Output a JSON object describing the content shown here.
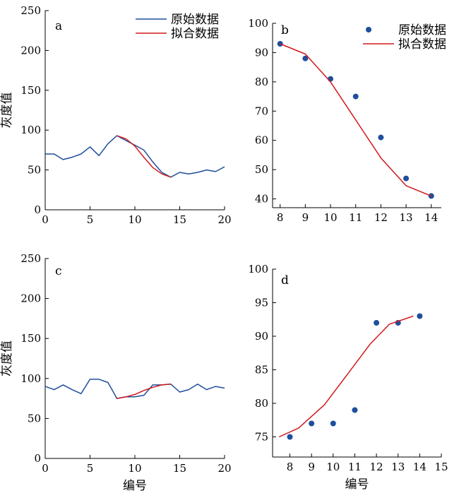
{
  "chart_data": [
    {
      "panel": "a",
      "type": "line",
      "ylabel": "灰度值",
      "xlabel": "",
      "xlim": [
        0,
        20
      ],
      "ylim": [
        0,
        250
      ],
      "xticks": [
        0,
        5,
        10,
        15,
        20
      ],
      "yticks": [
        0,
        50,
        100,
        150,
        200,
        250
      ],
      "legend_position": "top-right",
      "series": [
        {
          "name": "原始数据",
          "kind": "line",
          "color": "#1f4e9c",
          "x": [
            0,
            1,
            2,
            3,
            4,
            5,
            6,
            7,
            8,
            9,
            10,
            11,
            12,
            13,
            14,
            15,
            16,
            17,
            18,
            19,
            20
          ],
          "y": [
            70,
            70,
            63,
            66,
            70,
            79,
            68,
            83,
            93,
            87,
            81,
            75,
            60,
            47,
            41,
            47,
            45,
            47,
            50,
            48,
            54
          ]
        },
        {
          "name": "拟合数据",
          "kind": "line",
          "color": "#d0181c",
          "x": [
            8,
            9,
            10,
            11,
            12,
            13,
            14
          ],
          "y": [
            93,
            89,
            80,
            66,
            53,
            45,
            41
          ]
        }
      ]
    },
    {
      "panel": "b",
      "type": "scatter",
      "xlabel": "",
      "ylabel": "",
      "xlim": [
        7.7,
        14.4
      ],
      "ylim": [
        37,
        100
      ],
      "xticks": [
        8,
        9,
        10,
        11,
        12,
        13,
        14
      ],
      "yticks": [
        40,
        50,
        60,
        70,
        80,
        90,
        100
      ],
      "legend_position": "top-right",
      "series": [
        {
          "name": "原始数据",
          "kind": "scatter",
          "color": "#1f4e9c",
          "x": [
            8,
            9,
            10,
            11,
            12,
            13,
            14
          ],
          "y": [
            93,
            88,
            81,
            75,
            61,
            47,
            41
          ]
        },
        {
          "name": "拟合数据",
          "kind": "line",
          "color": "#d0181c",
          "x": [
            8,
            9,
            10,
            11,
            12,
            13,
            14
          ],
          "y": [
            93,
            89.5,
            80,
            67,
            54,
            44.5,
            41
          ]
        }
      ]
    },
    {
      "panel": "c",
      "type": "line",
      "ylabel": "灰度值",
      "xlabel": "编号",
      "xlim": [
        0,
        20
      ],
      "ylim": [
        0,
        250
      ],
      "xticks": [
        0,
        5,
        10,
        15,
        20
      ],
      "yticks": [
        0,
        50,
        100,
        150,
        200,
        250
      ],
      "series": [
        {
          "name": "原始数据",
          "kind": "line",
          "color": "#1f4e9c",
          "x": [
            0,
            1,
            2,
            3,
            4,
            5,
            6,
            7,
            8,
            9,
            10,
            11,
            12,
            13,
            14,
            15,
            16,
            17,
            18,
            19,
            20
          ],
          "y": [
            90,
            86,
            92,
            86,
            81,
            99,
            99,
            95,
            75,
            77,
            77,
            79,
            92,
            92,
            93,
            83,
            86,
            93,
            86,
            90,
            88
          ]
        },
        {
          "name": "拟合数据",
          "kind": "line",
          "color": "#d0181c",
          "x": [
            8,
            9,
            10,
            11,
            12,
            13,
            14
          ],
          "y": [
            75,
            77,
            80,
            85,
            89,
            92,
            93
          ]
        }
      ]
    },
    {
      "panel": "d",
      "type": "scatter",
      "xlabel": "编号",
      "ylabel": "",
      "xlim": [
        7.2,
        15
      ],
      "ylim": [
        72,
        100
      ],
      "xticks": [
        8,
        9,
        10,
        11,
        12,
        13,
        14,
        15
      ],
      "yticks": [
        75,
        80,
        85,
        90,
        95,
        100
      ],
      "series": [
        {
          "name": "原始数据",
          "kind": "scatter",
          "color": "#1f4e9c",
          "x": [
            8,
            9,
            10,
            11,
            12,
            13,
            14
          ],
          "y": [
            75,
            77,
            77,
            79,
            92,
            92,
            93
          ]
        },
        {
          "name": "拟合数据",
          "kind": "line",
          "color": "#d0181c",
          "x": [
            7.5,
            8.4,
            9.6,
            10.7,
            11.7,
            12.6,
            13.7
          ],
          "y": [
            75,
            76.3,
            79.8,
            84.5,
            88.8,
            91.8,
            93
          ]
        }
      ]
    }
  ]
}
